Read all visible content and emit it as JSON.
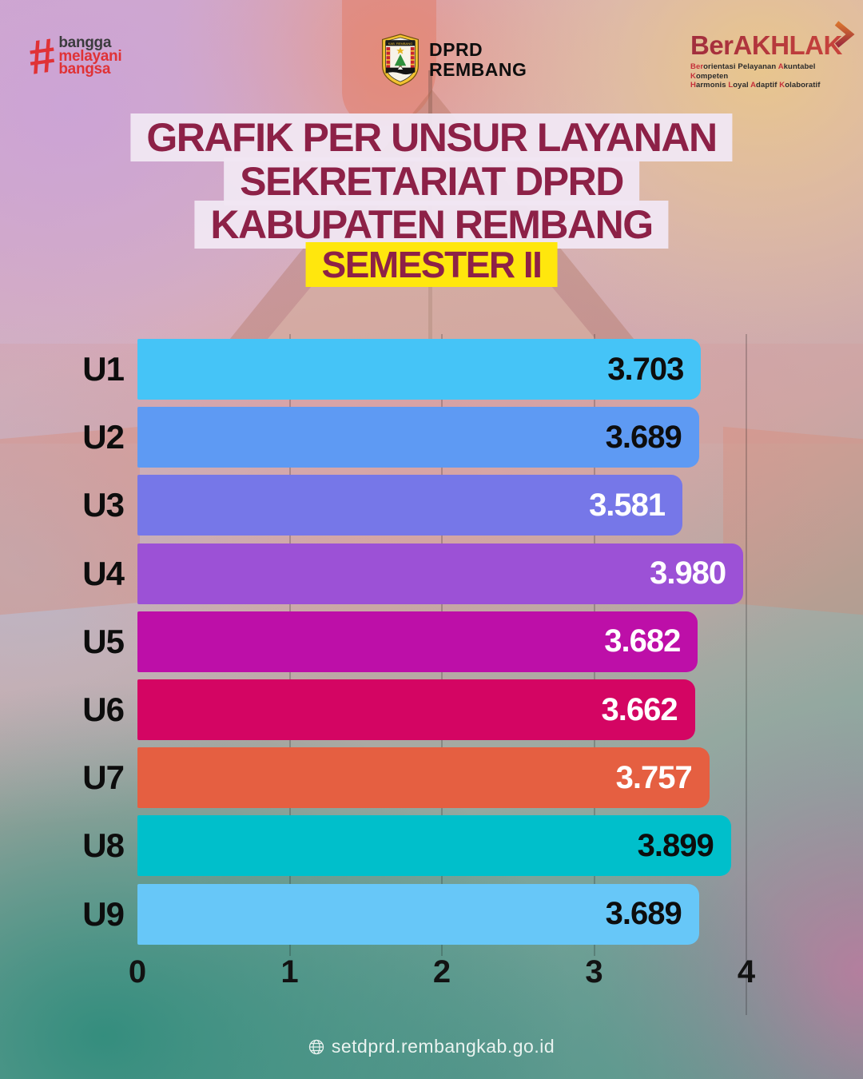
{
  "header": {
    "bangga_logo": {
      "hash": "#",
      "line1": "bangga",
      "line2": "melayani",
      "line3": "bangsa"
    },
    "dprd_logo": {
      "crest_banner": "KABUPATEN REMBANG",
      "line1": "DPRD",
      "line2": "REMBANG"
    },
    "berakhlak": {
      "title": "BerAKHLAK",
      "tagline_line1": [
        {
          "text": "Ber",
          "accent": true
        },
        {
          "text": "orientasi Pelayanan ",
          "accent": false
        },
        {
          "text": "A",
          "accent": true
        },
        {
          "text": "kuntabel ",
          "accent": false
        },
        {
          "text": "K",
          "accent": true
        },
        {
          "text": "ompeten",
          "accent": false
        }
      ],
      "tagline_line2": [
        {
          "text": "H",
          "accent": true
        },
        {
          "text": "armonis ",
          "accent": false
        },
        {
          "text": "L",
          "accent": true
        },
        {
          "text": "oyal ",
          "accent": false
        },
        {
          "text": "A",
          "accent": true
        },
        {
          "text": "daptif ",
          "accent": false
        },
        {
          "text": "K",
          "accent": true
        },
        {
          "text": "olaboratif",
          "accent": false
        }
      ]
    }
  },
  "title": {
    "line1": "GRAFIK PER UNSUR LAYANAN",
    "line2": "SEKRETARIAT DPRD",
    "line3": "KABUPATEN REMBANG",
    "line4": "SEMESTER II"
  },
  "chart_data": {
    "type": "bar",
    "orientation": "horizontal",
    "title": "GRAFIK PER UNSUR LAYANAN SEKRETARIAT DPRD KABUPATEN REMBANG SEMESTER II",
    "categories": [
      "U1",
      "U2",
      "U3",
      "U4",
      "U5",
      "U6",
      "U7",
      "U8",
      "U9"
    ],
    "values": [
      3.703,
      3.689,
      3.581,
      3.98,
      3.682,
      3.662,
      3.757,
      3.899,
      3.689
    ],
    "value_labels": [
      "3.703",
      "3.689",
      "3.581",
      "3.980",
      "3.682",
      "3.662",
      "3.757",
      "3.899",
      "3.689"
    ],
    "bar_colors": [
      "#45c4f7",
      "#5e9af3",
      "#7677e8",
      "#9c51d6",
      "#bd0fa8",
      "#d40563",
      "#e55f41",
      "#00bfcb",
      "#67c7f8"
    ],
    "value_text_colors": [
      "#0d0d0d",
      "#0d0d0d",
      "#ffffff",
      "#ffffff",
      "#ffffff",
      "#ffffff",
      "#ffffff",
      "#0d0d0d",
      "#0d0d0d"
    ],
    "xlim": [
      0,
      4
    ],
    "x_ticks": [
      "0",
      "1",
      "2",
      "3",
      "4"
    ],
    "grid": "faint vertical gridlines at 1,2,3,4",
    "legend": "none",
    "xlabel": "",
    "ylabel": ""
  },
  "footer": {
    "icon": "globe-icon",
    "url": "setdprd.rembangkab.go.id"
  },
  "colors": {
    "title_text_maroon": "#8d2147",
    "title_highlight": "#f0e6f2",
    "semester_highlight": "#ffe70d",
    "logo_red": "#e03236",
    "logo_dark": "#3b3b3d",
    "berakhlak_gradient": [
      "#a12d3d",
      "#c8433c"
    ],
    "axis_text": "#121212",
    "footer_text": "#eaf3f0"
  }
}
